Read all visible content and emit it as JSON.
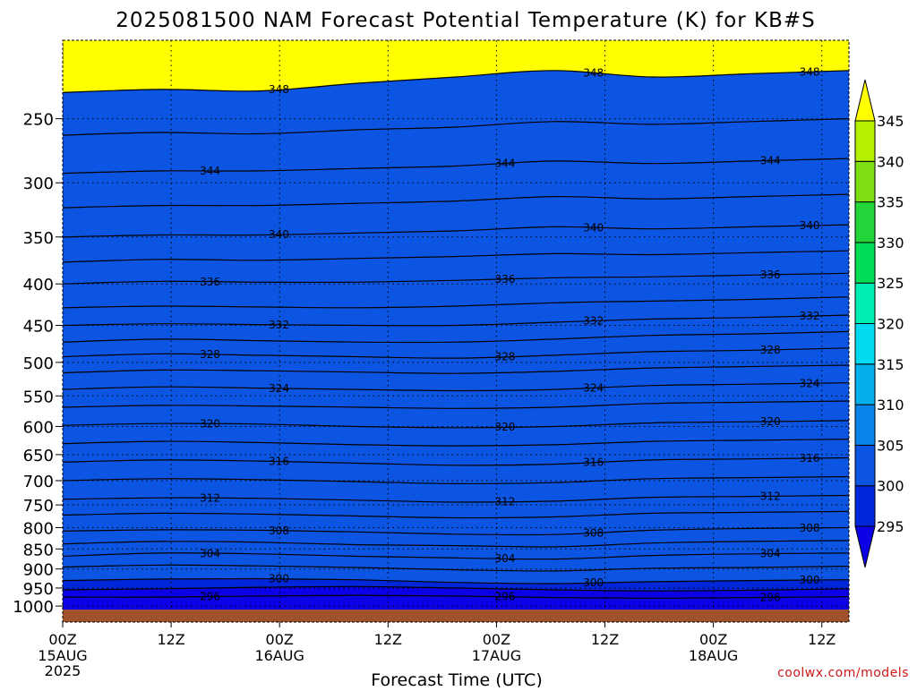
{
  "chart_data": {
    "type": "heatmap",
    "title": "2025081500 NAM Forecast Potential Temperature (K) for KB#S",
    "xlabel": "Forecast Time (UTC)",
    "ylabel": "",
    "y_scale": "log",
    "y_reversed": true,
    "ylim": [
      1010,
      200
    ],
    "y_ticks": [
      250,
      300,
      350,
      400,
      450,
      500,
      550,
      600,
      650,
      700,
      750,
      800,
      850,
      900,
      950,
      1000
    ],
    "x_ticks": [
      {
        "hour": 0,
        "time": "00Z",
        "date": "15AUG",
        "year": "2025"
      },
      {
        "hour": 12,
        "time": "12Z",
        "date": "",
        "year": ""
      },
      {
        "hour": 24,
        "time": "00Z",
        "date": "16AUG",
        "year": ""
      },
      {
        "hour": 36,
        "time": "12Z",
        "date": "",
        "year": ""
      },
      {
        "hour": 48,
        "time": "00Z",
        "date": "17AUG",
        "year": ""
      },
      {
        "hour": 60,
        "time": "12Z",
        "date": "",
        "year": ""
      },
      {
        "hour": 72,
        "time": "00Z",
        "date": "18AUG",
        "year": ""
      },
      {
        "hour": 84,
        "time": "12Z",
        "date": "",
        "year": ""
      }
    ],
    "grid": true,
    "colorbar": {
      "position": "right",
      "levels": [
        295,
        300,
        305,
        310,
        315,
        320,
        325,
        330,
        335,
        340,
        345
      ],
      "labels": [
        "295",
        "300",
        "305",
        "310",
        "315",
        "320",
        "325",
        "330",
        "335",
        "340",
        "345"
      ],
      "colors": [
        "#0b00e6",
        "#0026d9",
        "#0c55e2",
        "#0a83e8",
        "#05afe9",
        "#00d9f0",
        "#00eeb3",
        "#00dc55",
        "#22d63a",
        "#7ede14",
        "#b4f000",
        "#ffff00"
      ]
    },
    "contour_interval": 2,
    "contours": [
      {
        "theta": 296,
        "label": "296",
        "pressure": [
          975,
          975,
          972,
          970,
          972,
          976,
          978,
          976,
          974
        ]
      },
      {
        "theta": 298,
        "label": "",
        "pressure": [
          955,
          952,
          948,
          946,
          950,
          955,
          958,
          956,
          952
        ]
      },
      {
        "theta": 300,
        "label": "300",
        "pressure": [
          930,
          926,
          925,
          928,
          935,
          938,
          933,
          930,
          928
        ]
      },
      {
        "theta": 302,
        "label": "",
        "pressure": [
          895,
          890,
          892,
          896,
          902,
          905,
          898,
          896,
          893
        ]
      },
      {
        "theta": 304,
        "label": "304",
        "pressure": [
          868,
          860,
          862,
          868,
          872,
          875,
          866,
          862,
          860
        ]
      },
      {
        "theta": 306,
        "label": "",
        "pressure": [
          838,
          832,
          834,
          840,
          842,
          845,
          836,
          832,
          830
        ]
      },
      {
        "theta": 308,
        "label": "308",
        "pressure": [
          808,
          805,
          806,
          810,
          815,
          816,
          806,
          802,
          800
        ]
      },
      {
        "theta": 310,
        "label": "",
        "pressure": [
          772,
          768,
          770,
          774,
          778,
          776,
          768,
          766,
          764
        ]
      },
      {
        "theta": 312,
        "label": "312",
        "pressure": [
          738,
          735,
          736,
          740,
          744,
          742,
          734,
          732,
          730
        ]
      },
      {
        "theta": 314,
        "label": "",
        "pressure": [
          700,
          696,
          698,
          702,
          706,
          704,
          696,
          694,
          692
        ]
      },
      {
        "theta": 316,
        "label": "316",
        "pressure": [
          664,
          660,
          662,
          666,
          670,
          668,
          660,
          658,
          656
        ]
      },
      {
        "theta": 318,
        "label": "",
        "pressure": [
          630,
          626,
          628,
          632,
          634,
          632,
          626,
          624,
          622
        ]
      },
      {
        "theta": 320,
        "label": "320",
        "pressure": [
          598,
          595,
          596,
          600,
          602,
          600,
          594,
          592,
          590
        ]
      },
      {
        "theta": 322,
        "label": "",
        "pressure": [
          568,
          565,
          566,
          568,
          570,
          568,
          562,
          560,
          558
        ]
      },
      {
        "theta": 324,
        "label": "324",
        "pressure": [
          540,
          536,
          538,
          540,
          542,
          540,
          534,
          532,
          530
        ]
      },
      {
        "theta": 326,
        "label": "",
        "pressure": [
          515,
          511,
          512,
          514,
          516,
          513,
          508,
          506,
          504
        ]
      },
      {
        "theta": 328,
        "label": "328",
        "pressure": [
          492,
          488,
          490,
          492,
          494,
          490,
          485,
          483,
          480
        ]
      },
      {
        "theta": 330,
        "label": "",
        "pressure": [
          472,
          468,
          470,
          472,
          472,
          468,
          463,
          461,
          458
        ]
      },
      {
        "theta": 332,
        "label": "332",
        "pressure": [
          450,
          448,
          449,
          450,
          450,
          446,
          442,
          440,
          437
        ]
      },
      {
        "theta": 334,
        "label": "",
        "pressure": [
          428,
          426,
          427,
          428,
          426,
          422,
          420,
          418,
          415
        ]
      },
      {
        "theta": 336,
        "label": "336",
        "pressure": [
          400,
          397,
          398,
          398,
          396,
          393,
          392,
          390,
          388
        ]
      },
      {
        "theta": 338,
        "label": "",
        "pressure": [
          376,
          373,
          374,
          372,
          370,
          367,
          368,
          366,
          364
        ]
      },
      {
        "theta": 340,
        "label": "340",
        "pressure": [
          350,
          348,
          348,
          346,
          344,
          340,
          342,
          340,
          338
        ]
      },
      {
        "theta": 342,
        "label": "",
        "pressure": [
          322,
          320,
          320,
          318,
          316,
          312,
          314,
          312,
          310
        ]
      },
      {
        "theta": 344,
        "label": "344",
        "pressure": [
          292,
          290,
          290,
          288,
          286,
          282,
          284,
          282,
          280
        ]
      },
      {
        "theta": 346,
        "label": "",
        "pressure": [
          262,
          260,
          261,
          258,
          256,
          252,
          254,
          252,
          250
        ]
      },
      {
        "theta": 348,
        "label": "348",
        "pressure": [
          232,
          230,
          231,
          226,
          222,
          218,
          222,
          220,
          218
        ]
      }
    ]
  },
  "watermark": "coolwx.com/models"
}
